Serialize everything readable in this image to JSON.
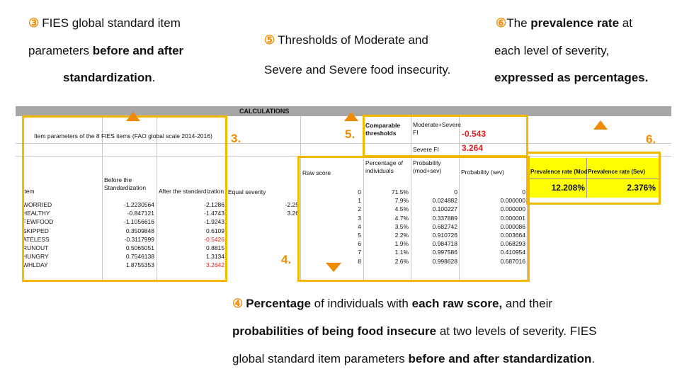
{
  "notes": {
    "n3": {
      "num": "③",
      "line1": "FIES global standard item",
      "line2a": "parameters ",
      "line2b": "before and after",
      "line3": "standardization",
      "line3end": "."
    },
    "n5": {
      "num": "⑤",
      "line1": "Thresholds of Moderate and",
      "line2": "Severe and Severe food insecurity."
    },
    "n6": {
      "num": "⑥",
      "line1a": "The ",
      "line1b": "prevalence rate",
      "line1c": " at",
      "line2": "each level of severity,",
      "line3": "expressed as percentages."
    },
    "n4": {
      "num": "④",
      "l1a": "Percentage",
      "l1b": " of individuals with ",
      "l1c": "each raw score,",
      "l1d": " and their",
      "l2a": "probabilities of being food insecure",
      "l2b": " at two levels of severity. FIES",
      "l3a": "global standard item parameters ",
      "l3b": "before and after standardization",
      "l3c": "."
    }
  },
  "sheet": {
    "header": "CALCULATIONS",
    "item_table_title": "Item parameters of the 8 FIES items (FAO global scale 2014-2016)",
    "col_item": "Item",
    "col_before": "Before the Standardization",
    "col_after": "After the standardization",
    "col_equal": "Equal severity",
    "items": [
      {
        "name": "WORRIED",
        "before": "-1.2230564",
        "after": "-2.1286",
        "equal": "-2.25"
      },
      {
        "name": "HEALTHY",
        "before": "-0.847121",
        "after": "-1.4743",
        "equal": "3.26"
      },
      {
        "name": "FEWFOOD",
        "before": "-1.1056616",
        "after": "-1.9243",
        "equal": ""
      },
      {
        "name": "SKIPPED",
        "before": "0.3509848",
        "after": "0.6109",
        "equal": ""
      },
      {
        "name": "ATELESS",
        "before": "-0.3117999",
        "after": "-0.5426",
        "equal": ""
      },
      {
        "name": "RUNOUT",
        "before": "0.5065051",
        "after": "0.8815",
        "equal": ""
      },
      {
        "name": "HUNGRY",
        "before": "0.7546138",
        "after": "1.3134",
        "equal": ""
      },
      {
        "name": "WHLDAY",
        "before": "1.8755353",
        "after": "3.2642",
        "equal": ""
      }
    ],
    "thresholds": {
      "title": "Comparable thresholds",
      "mod_label": "Moderate+Severe FI",
      "mod_value": "-0.543",
      "sev_label": "Severe FI",
      "sev_value": "3.264"
    },
    "raw": {
      "col_raw": "Raw score",
      "col_pct": "Percentage of individuals",
      "col_pmod": "Probability (mod+sev)",
      "col_psev": "Probability (sev)",
      "rows": [
        {
          "score": "0",
          "pct": "71.5%",
          "pmod": "0",
          "psev": "0"
        },
        {
          "score": "1",
          "pct": "7.9%",
          "pmod": "0.024882",
          "psev": "0.000000"
        },
        {
          "score": "2",
          "pct": "4.5%",
          "pmod": "0.100227",
          "psev": "0.000000"
        },
        {
          "score": "3",
          "pct": "4.7%",
          "pmod": "0.337889",
          "psev": "0.000001"
        },
        {
          "score": "4",
          "pct": "3.5%",
          "pmod": "0.682742",
          "psev": "0.000086"
        },
        {
          "score": "5",
          "pct": "2.2%",
          "pmod": "0.910726",
          "psev": "0.003664"
        },
        {
          "score": "6",
          "pct": "1.9%",
          "pmod": "0.984718",
          "psev": "0.068293"
        },
        {
          "score": "7",
          "pct": "1.1%",
          "pmod": "0.997586",
          "psev": "0.410954"
        },
        {
          "score": "8",
          "pct": "2.6%",
          "pmod": "0.998628",
          "psev": "0.687016"
        }
      ]
    },
    "prevalence": {
      "mod_label": "Prevalence rate (Mod",
      "sev_label": "Prevalence rate (Sev)",
      "mod_value": "12.208%",
      "sev_value": "2.376%"
    }
  },
  "labels": {
    "l3": "3.",
    "l4": "4.",
    "l5": "5.",
    "l6": "6."
  },
  "colors": {
    "accent": "#f08a00",
    "box": "#f5b800",
    "highlight": "#ffff00",
    "negative": "#e02020"
  }
}
